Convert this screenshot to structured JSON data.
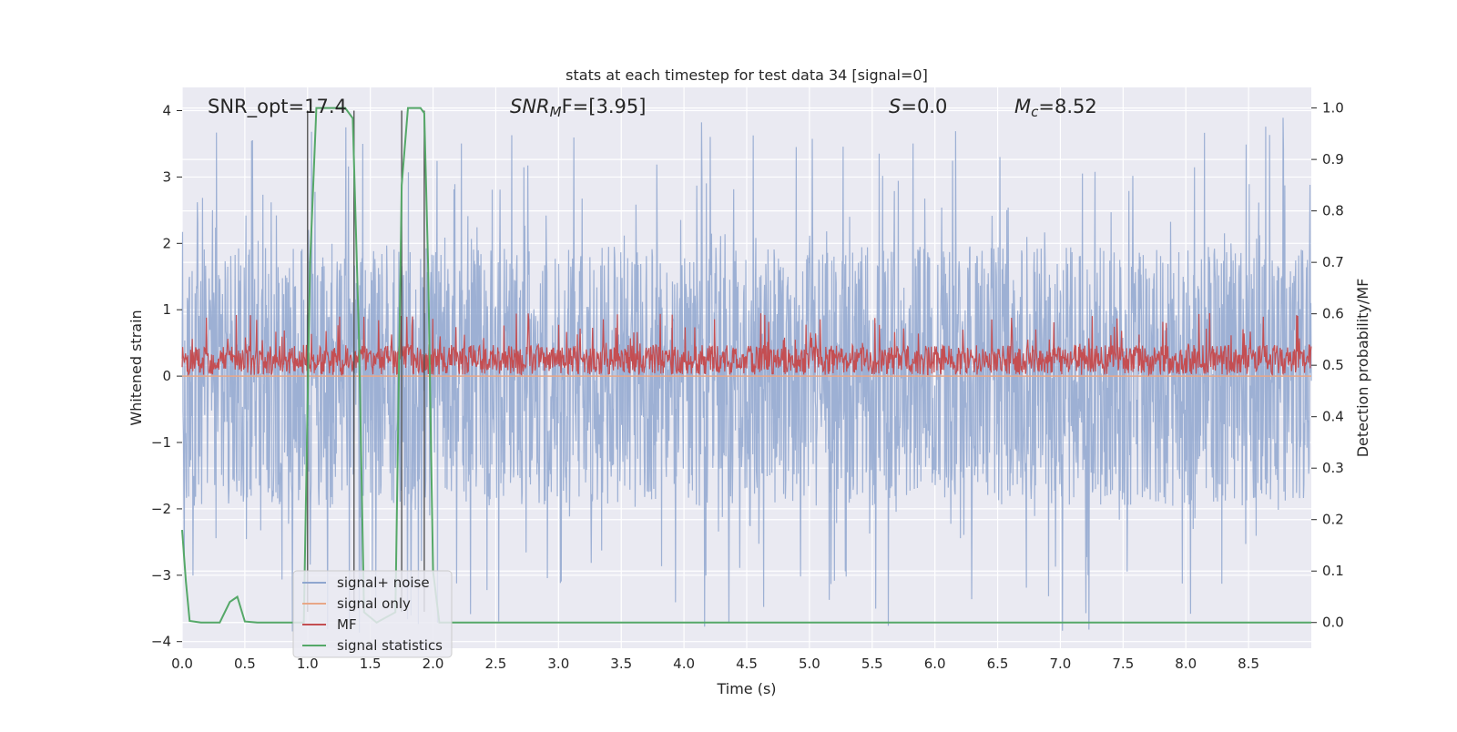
{
  "chart_data": {
    "type": "line",
    "title": "stats at each timestep for test data 34 [signal=0]",
    "xlabel": "Time (s)",
    "ylabel": "Whitened strain",
    "ylabel_right": "Detection probability/MF",
    "xlim": [
      0.0,
      9.0
    ],
    "ylim": [
      -4.1,
      4.35
    ],
    "ylim_right": [
      -0.05,
      1.04
    ],
    "xticks": [
      "0.0",
      "0.5",
      "1.0",
      "1.5",
      "2.0",
      "2.5",
      "3.0",
      "3.5",
      "4.0",
      "4.5",
      "5.0",
      "5.5",
      "6.0",
      "6.5",
      "7.0",
      "7.5",
      "8.0",
      "8.5"
    ],
    "yticks": [
      "−4",
      "−3",
      "−2",
      "−1",
      "0",
      "1",
      "2",
      "3",
      "4"
    ],
    "yticks_right": [
      "0.0",
      "0.1",
      "0.2",
      "0.3",
      "0.4",
      "0.5",
      "0.6",
      "0.7",
      "0.8",
      "0.9",
      "1.0"
    ],
    "grid": true,
    "legend_position": "lower-left",
    "annotations": {
      "snr_opt": "SNR_opt=17.4",
      "snr_mf_base": "SNR",
      "snr_mf_sub": "M",
      "snr_mf_rest": "F=[3.95]",
      "s_var": "S",
      "s_rest": "=0.0",
      "mc_var": "M",
      "mc_sub": "c",
      "mc_rest": "=8.52"
    },
    "series": [
      {
        "name": "signal+ noise",
        "color": "#8fa6cf",
        "kind": "noise",
        "amplitude_typical": 1.7,
        "amplitude_peak": 3.9
      },
      {
        "name": "signal only",
        "color": "#e8a787",
        "kind": "flat",
        "y": 0.0
      },
      {
        "name": "MF",
        "color": "#c44e52",
        "kind": "mf",
        "baseline": 0.1,
        "peak": 0.95
      },
      {
        "name": "signal statistics",
        "color": "#55a868",
        "kind": "prob",
        "x": [
          0.0,
          0.03,
          0.06,
          0.15,
          0.3,
          0.38,
          0.44,
          0.5,
          0.6,
          0.9,
          0.97,
          1.02,
          1.07,
          1.1,
          1.3,
          1.36,
          1.41,
          1.45,
          1.55,
          1.7,
          1.75,
          1.8,
          1.9,
          1.93,
          1.96,
          2.0,
          2.05,
          2.2,
          9.0
        ],
        "y": [
          0.18,
          0.08,
          0.003,
          0.0,
          0.0,
          0.04,
          0.05,
          0.002,
          0.0,
          0.0,
          0.0,
          0.7,
          1.0,
          1.0,
          1.0,
          0.98,
          0.55,
          0.02,
          0.0,
          0.02,
          0.85,
          1.0,
          1.0,
          0.99,
          0.7,
          0.1,
          0.0,
          0.0,
          0.0
        ]
      }
    ],
    "vertical_markers": [
      1.0,
      1.37,
      1.75,
      1.93
    ]
  }
}
